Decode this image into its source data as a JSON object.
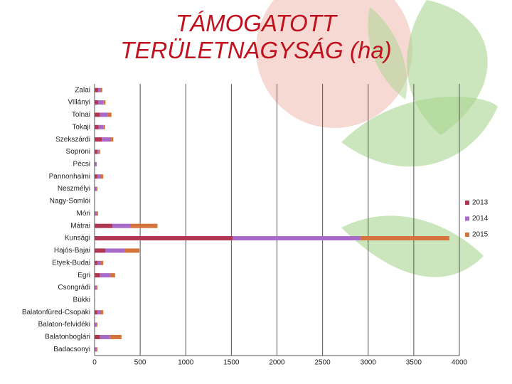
{
  "chart_data": {
    "type": "stacked-barh",
    "title": "TÁMOGATOTT TERÜLETNAGYSÁG (ha)",
    "categories": [
      "Zalai",
      "Villányi",
      "Tolnai",
      "Tokaji",
      "Szekszárdi",
      "Soproni",
      "Pécsi",
      "Pannonhalmi",
      "Neszmélyi",
      "Nagy-Somlói",
      "Móri",
      "Mátrai",
      "Kunsági",
      "Hajós-Bajai",
      "Etyek-Budai",
      "Egri",
      "Csongrádi",
      "Bükki",
      "Balatonfüred-Csopaki",
      "Balaton-felvidéki",
      "Balatonboglári",
      "Badacsonyi"
    ],
    "series": [
      {
        "name": "2013",
        "color": "#b03652",
        "values": [
          40,
          40,
          60,
          45,
          80,
          30,
          8,
          30,
          8,
          1,
          8,
          195,
          1515,
          117,
          30,
          60,
          8,
          1,
          30,
          8,
          60,
          8
        ]
      },
      {
        "name": "2014",
        "color": "#a86ac8",
        "values": [
          30,
          55,
          85,
          55,
          100,
          15,
          8,
          40,
          8,
          1,
          15,
          195,
          1400,
          210,
          40,
          110,
          8,
          1,
          40,
          8,
          110,
          15
        ]
      },
      {
        "name": "2015",
        "color": "#d6723c",
        "values": [
          15,
          25,
          40,
          15,
          25,
          15,
          8,
          25,
          15,
          1,
          15,
          300,
          975,
          165,
          25,
          55,
          15,
          1,
          25,
          15,
          125,
          8
        ]
      }
    ],
    "xlim": [
      0,
      4000
    ],
    "xticks": [
      0,
      500,
      1000,
      1500,
      2000,
      2500,
      3000,
      3500,
      4000
    ],
    "grid": true,
    "legend": "right"
  }
}
